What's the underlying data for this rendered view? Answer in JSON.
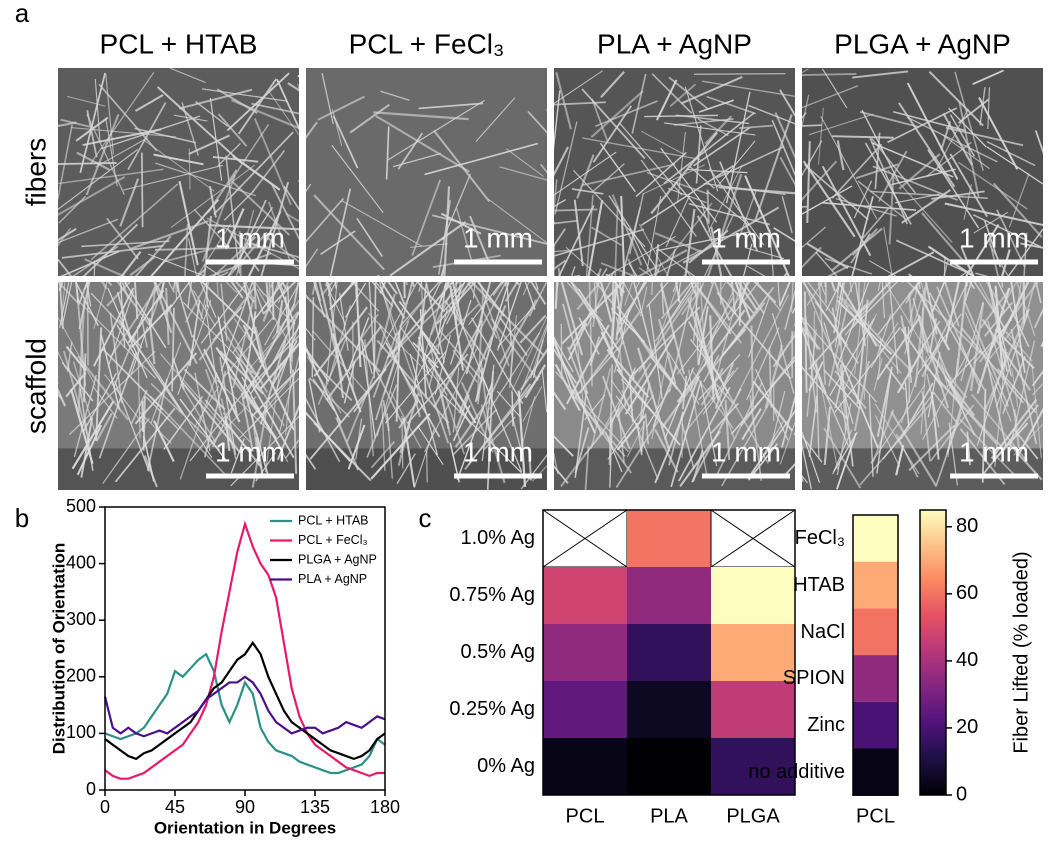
{
  "panel_labels": [
    "a",
    "b",
    "c"
  ],
  "images": {
    "columns": [
      "PCL + HTAB",
      "PCL + FeCl₃",
      "PLA + AgNP",
      "PLGA + AgNP"
    ],
    "rows": [
      "fibers",
      "scaffold"
    ],
    "scale_bar": "1 mm"
  },
  "chart_data": [
    {
      "type": "line",
      "xlabel": "Orientation in Degrees",
      "ylabel": "Distribution of Orientation",
      "x": [
        0,
        5,
        10,
        15,
        20,
        25,
        30,
        35,
        40,
        45,
        50,
        55,
        60,
        65,
        70,
        75,
        80,
        85,
        90,
        95,
        100,
        105,
        110,
        115,
        120,
        125,
        130,
        135,
        140,
        145,
        150,
        155,
        160,
        165,
        170,
        175,
        180
      ],
      "xlim": [
        0,
        180
      ],
      "xticks": [
        0,
        45,
        90,
        135,
        180
      ],
      "ylim": [
        0,
        500
      ],
      "yticks": [
        0,
        100,
        200,
        300,
        400,
        500
      ],
      "legend": "upper right",
      "series": [
        {
          "name": "PCL + HTAB",
          "color": "#2a9088",
          "values": [
            100,
            95,
            90,
            95,
            100,
            110,
            130,
            150,
            170,
            210,
            200,
            215,
            230,
            240,
            210,
            150,
            120,
            150,
            190,
            170,
            110,
            85,
            70,
            65,
            60,
            50,
            45,
            40,
            35,
            30,
            30,
            35,
            40,
            45,
            60,
            90,
            80
          ]
        },
        {
          "name": "PCL + FeCl₃",
          "color": "#e8186c",
          "values": [
            35,
            25,
            20,
            20,
            25,
            30,
            40,
            50,
            60,
            70,
            80,
            100,
            120,
            150,
            200,
            280,
            350,
            420,
            470,
            430,
            400,
            380,
            340,
            260,
            180,
            130,
            100,
            80,
            70,
            60,
            50,
            40,
            35,
            30,
            25,
            30,
            30
          ]
        },
        {
          "name": "PLGA + AgNP",
          "color": "#000000",
          "values": [
            90,
            80,
            70,
            60,
            55,
            65,
            70,
            80,
            90,
            100,
            110,
            120,
            140,
            160,
            180,
            190,
            210,
            230,
            240,
            260,
            240,
            200,
            170,
            140,
            120,
            110,
            100,
            90,
            80,
            70,
            65,
            60,
            55,
            60,
            70,
            90,
            100
          ]
        },
        {
          "name": "PLA + AgNP",
          "color": "#4b0f8c",
          "values": [
            165,
            110,
            100,
            110,
            100,
            95,
            100,
            105,
            100,
            110,
            120,
            130,
            140,
            160,
            170,
            180,
            190,
            190,
            200,
            190,
            170,
            140,
            120,
            110,
            100,
            105,
            110,
            110,
            100,
            105,
            110,
            120,
            115,
            110,
            120,
            130,
            125
          ]
        }
      ]
    },
    {
      "type": "heatmap",
      "columns": [
        "PCL",
        "PLA",
        "PLGA"
      ],
      "rows": [
        "1.0% Ag",
        "0.75% Ag",
        "0.5% Ag",
        "0.25% Ag",
        "0% Ag"
      ],
      "values": [
        [
          null,
          60,
          null
        ],
        [
          48,
          35,
          85
        ],
        [
          35,
          15,
          70
        ],
        [
          25,
          5,
          45
        ],
        [
          3,
          0,
          15
        ]
      ]
    },
    {
      "type": "heatmap",
      "columns": [
        "PCL"
      ],
      "rows": [
        "FeCl₃",
        "HTAB",
        "NaCl",
        "SPION",
        "Zinc",
        "no additive"
      ],
      "values": [
        [
          85
        ],
        [
          70
        ],
        [
          60
        ],
        [
          35
        ],
        [
          20
        ],
        [
          3
        ]
      ],
      "colorbar": {
        "label": "Fiber Lifted (% loaded)",
        "colormap": "magma",
        "lim": [
          0,
          85
        ],
        "ticks": [
          0,
          20,
          40,
          60,
          80
        ]
      }
    }
  ]
}
